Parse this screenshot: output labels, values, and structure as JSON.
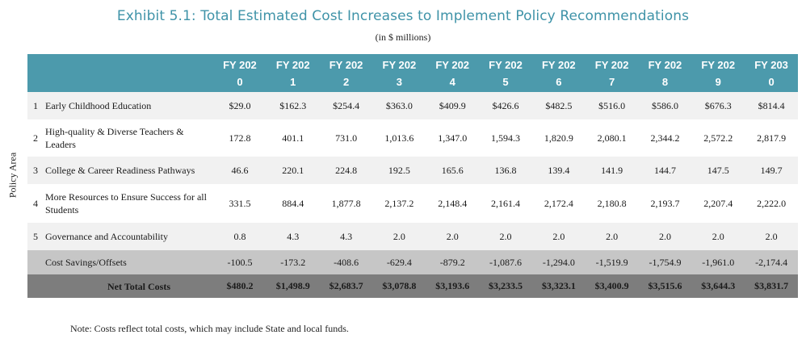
{
  "title": "Exhibit 5.1: Total Estimated Cost Increases to Implement Policy Recommendations",
  "subtitle": "(in $ millions)",
  "side_label": "Policy Area",
  "columns": [
    "FY 2020",
    "FY 2021",
    "FY 2022",
    "FY 2023",
    "FY 2024",
    "FY 2025",
    "FY 2026",
    "FY 2027",
    "FY 2028",
    "FY 2029",
    "FY 2030"
  ],
  "rows": [
    {
      "num": "1",
      "name": "Early Childhood Education",
      "values": [
        "$29.0",
        "$162.3",
        "$254.4",
        "$363.0",
        "$409.9",
        "$426.6",
        "$482.5",
        "$516.0",
        "$586.0",
        "$676.3",
        "$814.4"
      ]
    },
    {
      "num": "2",
      "name": "High-quality & Diverse Teachers & Leaders",
      "values": [
        "172.8",
        "401.1",
        "731.0",
        "1,013.6",
        "1,347.0",
        "1,594.3",
        "1,820.9",
        "2,080.1",
        "2,344.2",
        "2,572.2",
        "2,817.9"
      ]
    },
    {
      "num": "3",
      "name": "College & Career Readiness Pathways",
      "values": [
        "46.6",
        "220.1",
        "224.8",
        "192.5",
        "165.6",
        "136.8",
        "139.4",
        "141.9",
        "144.7",
        "147.5",
        "149.7"
      ]
    },
    {
      "num": "4",
      "name": "More Resources to Ensure Success for all Students",
      "values": [
        "331.5",
        "884.4",
        "1,877.8",
        "2,137.2",
        "2,148.4",
        "2,161.4",
        "2,172.4",
        "2,180.8",
        "2,193.7",
        "2,207.4",
        "2,222.0"
      ]
    },
    {
      "num": "5",
      "name": "Governance and Accountability",
      "values": [
        "0.8",
        "4.3",
        "4.3",
        "2.0",
        "2.0",
        "2.0",
        "2.0",
        "2.0",
        "2.0",
        "2.0",
        "2.0"
      ]
    }
  ],
  "savings": {
    "name": "Cost Savings/Offsets",
    "values": [
      "-100.5",
      "-173.2",
      "-408.6",
      "-629.4",
      "-879.2",
      "-1,087.6",
      "-1,294.0",
      "-1,519.9",
      "-1,754.9",
      "-1,961.0",
      "-2,174.4"
    ]
  },
  "total": {
    "name": "Net Total Costs",
    "values": [
      "$480.2",
      "$1,498.9",
      "$2,683.7",
      "$3,078.8",
      "$3,193.6",
      "$3,233.5",
      "$3,323.1",
      "$3,400.9",
      "$3,515.6",
      "$3,644.3",
      "$3,831.7"
    ]
  },
  "note": "Note: Costs reflect total costs, which may include State and local funds.",
  "colors": {
    "title": "#3f93a8",
    "header_bg": "#4c9aac",
    "savings_bg": "#c6c6c6",
    "total_bg": "#7d7d7d",
    "stripe_bg": "#f1f1f1"
  }
}
